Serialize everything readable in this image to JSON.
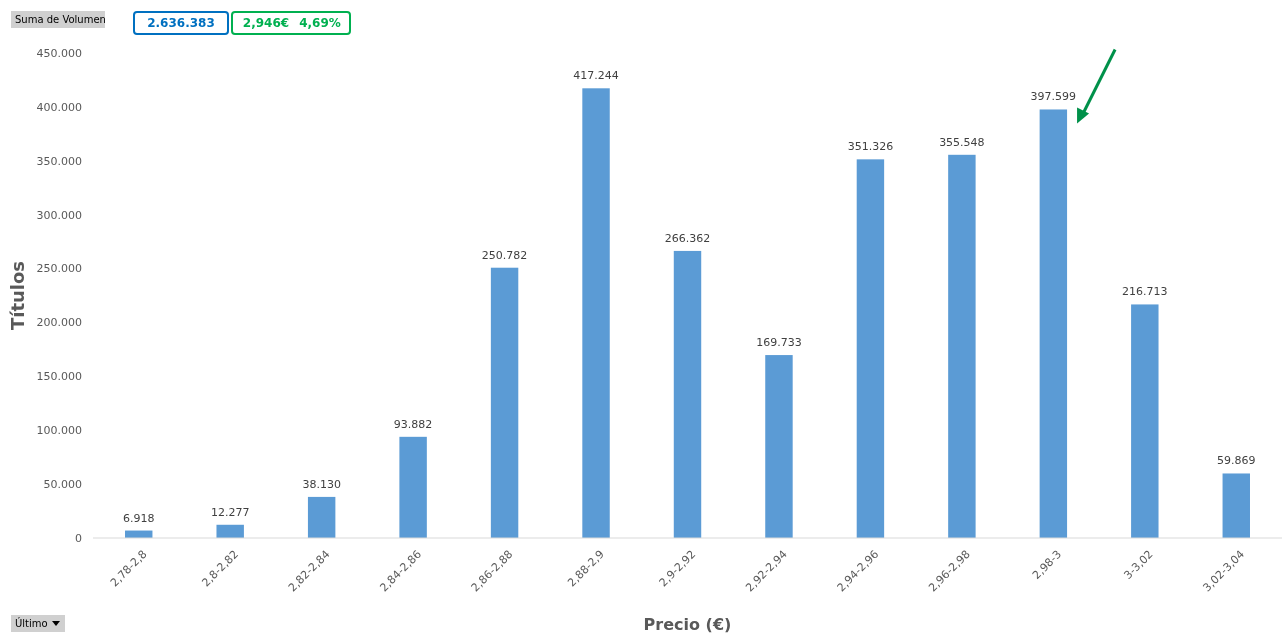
{
  "chart_data": {
    "type": "bar",
    "xlabel": "Precio (€)",
    "ylabel": "Títulos",
    "categories": [
      "2,78-2,8",
      "2,8-2,82",
      "2,82-2,84",
      "2,84-2,86",
      "2,86-2,88",
      "2,88-2,9",
      "2,9-2,92",
      "2,92-2,94",
      "2,94-2,96",
      "2,96-2,98",
      "2,98-3",
      "3-3,02",
      "3,02-3,04"
    ],
    "values": [
      6918,
      12277,
      38130,
      93882,
      250782,
      417244,
      266362,
      169733,
      351326,
      355548,
      397599,
      216713,
      59869
    ],
    "value_labels": [
      "6.918",
      "12.277",
      "38.130",
      "93.882",
      "250.782",
      "417.244",
      "266.362",
      "169.733",
      "351.326",
      "355.548",
      "397.599",
      "216.713",
      "59.869"
    ],
    "color": "#5b9bd5",
    "ylim": [
      0,
      450000
    ],
    "yticks": [
      {
        "value": 0,
        "label": "0"
      },
      {
        "value": 50000,
        "label": "50.000"
      },
      {
        "value": 100000,
        "label": "100.000"
      },
      {
        "value": 150000,
        "label": "150.000"
      },
      {
        "value": 200000,
        "label": "200.000"
      },
      {
        "value": 250000,
        "label": "250.000"
      },
      {
        "value": 300000,
        "label": "300.000"
      },
      {
        "value": 350000,
        "label": "350.000"
      },
      {
        "value": 400000,
        "label": "400.000"
      },
      {
        "value": 450000,
        "label": "450.000"
      }
    ],
    "grid": false,
    "annotations": [
      "Suma de Volumen",
      "2.636.383",
      "2,946€",
      "4,69%",
      "Último"
    ]
  }
}
